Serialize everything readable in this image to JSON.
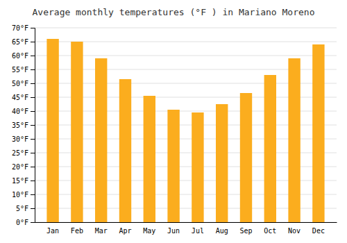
{
  "chart_data": {
    "type": "bar",
    "title": "Average monthly temperatures (°F ) in Mariano Moreno",
    "categories": [
      "Jan",
      "Feb",
      "Mar",
      "Apr",
      "May",
      "Jun",
      "Jul",
      "Aug",
      "Sep",
      "Oct",
      "Nov",
      "Dec"
    ],
    "values": [
      66,
      65,
      59,
      51.5,
      45.5,
      40.5,
      39.5,
      42.5,
      46.5,
      53,
      59,
      64
    ],
    "color": "#FBAD1E",
    "ylim": [
      0,
      70
    ],
    "yticks": [
      {
        "value": 0,
        "label": "0°F"
      },
      {
        "value": 5,
        "label": "5°F"
      },
      {
        "value": 10,
        "label": "10°F"
      },
      {
        "value": 15,
        "label": "15°F"
      },
      {
        "value": 20,
        "label": "20°F"
      },
      {
        "value": 25,
        "label": "25°F"
      },
      {
        "value": 30,
        "label": "30°F"
      },
      {
        "value": 35,
        "label": "35°F"
      },
      {
        "value": 40,
        "label": "40°F"
      },
      {
        "value": 45,
        "label": "45°F"
      },
      {
        "value": 50,
        "label": "50°F"
      },
      {
        "value": 55,
        "label": "55°F"
      },
      {
        "value": 60,
        "label": "60°F"
      },
      {
        "value": 65,
        "label": "65°F"
      },
      {
        "value": 70,
        "label": "70°F"
      }
    ],
    "grid": true
  }
}
